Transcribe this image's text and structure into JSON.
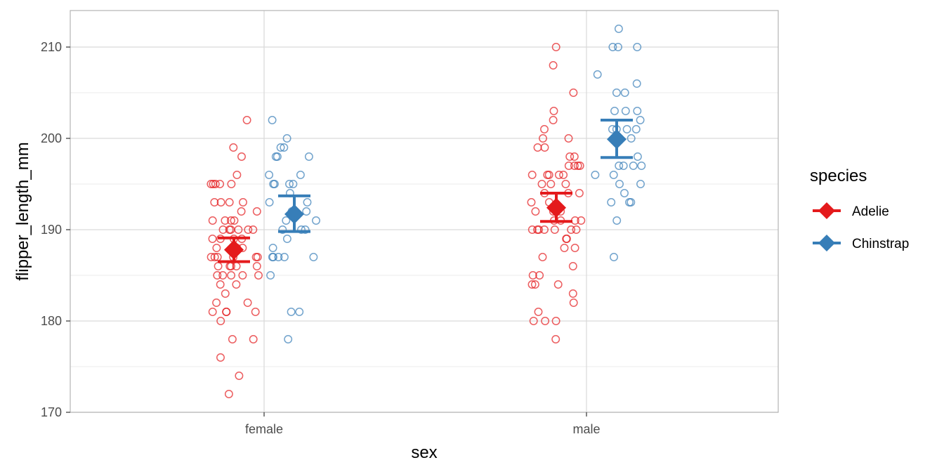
{
  "chart_data": {
    "type": "scatter",
    "title": "",
    "xlabel": "sex",
    "ylabel": "flipper_length_mm",
    "categories": [
      "female",
      "male"
    ],
    "ylim": [
      170,
      214
    ],
    "yticks": [
      170,
      180,
      190,
      200,
      210
    ],
    "grid": true,
    "legend": {
      "title": "species",
      "placement": "right"
    },
    "series": [
      {
        "name": "Adelie",
        "color": "#E41A1C",
        "summary": {
          "female": {
            "mean": 187.8,
            "lower": 186.5,
            "upper": 189.1
          },
          "male": {
            "mean": 192.4,
            "lower": 190.9,
            "upper": 194.0
          }
        },
        "points": {
          "female": [
            199,
            196,
            193,
            193,
            191,
            191,
            191,
            190,
            190,
            190,
            190,
            190,
            189,
            189,
            189,
            189,
            188,
            188,
            188,
            187,
            187,
            187,
            187,
            187,
            187,
            186,
            186,
            186,
            186,
            186,
            185,
            185,
            185,
            185,
            185,
            184,
            184,
            183,
            182,
            182,
            181,
            181,
            181,
            181,
            180,
            178,
            178,
            176,
            174,
            172,
            202,
            198,
            195,
            195,
            195,
            195,
            195,
            193,
            193,
            192,
            192,
            191,
            190
          ],
          "male": [
            210,
            208,
            205,
            203,
            202,
            201,
            200,
            200,
            199,
            199,
            198,
            198,
            197,
            197,
            197,
            197,
            196,
            196,
            196,
            196,
            196,
            195,
            195,
            195,
            194,
            194,
            194,
            193,
            193,
            192,
            192,
            192,
            191,
            191,
            191,
            191,
            190,
            190,
            190,
            190,
            190,
            190,
            190,
            189,
            189,
            188,
            188,
            187,
            186,
            185,
            185,
            184,
            184,
            184,
            183,
            182,
            181,
            180,
            180,
            180,
            178
          ]
        }
      },
      {
        "name": "Chinstrap",
        "color": "#377EB8",
        "summary": {
          "female": {
            "mean": 191.7,
            "lower": 189.8,
            "upper": 193.7
          },
          "male": {
            "mean": 199.9,
            "lower": 197.9,
            "upper": 202.0
          }
        },
        "points": {
          "female": [
            202,
            200,
            199,
            199,
            198,
            198,
            198,
            196,
            196,
            195,
            195,
            195,
            195,
            194,
            193,
            193,
            192,
            192,
            191,
            191,
            190,
            190,
            190,
            189,
            188,
            187,
            187,
            187,
            187,
            187,
            185,
            181,
            181,
            178
          ],
          "male": [
            212,
            210,
            210,
            210,
            207,
            206,
            205,
            205,
            203,
            203,
            203,
            202,
            201,
            201,
            201,
            201,
            200,
            198,
            197,
            197,
            197,
            197,
            196,
            196,
            195,
            195,
            194,
            193,
            193,
            193,
            191,
            187
          ]
        }
      }
    ]
  }
}
